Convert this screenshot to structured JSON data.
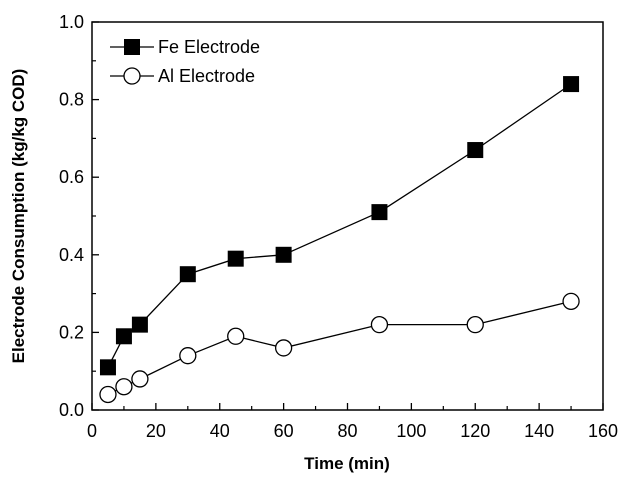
{
  "chart_data": {
    "type": "line",
    "xlabel": "Time (min)",
    "ylabel": "Electrode Consumption (kg/kg COD)",
    "xlim": [
      0,
      160
    ],
    "ylim": [
      0,
      1.0
    ],
    "x_ticks": [
      "0",
      "20",
      "40",
      "60",
      "80",
      "100",
      "120",
      "140",
      "160"
    ],
    "y_ticks": [
      "0.0",
      "0.2",
      "0.4",
      "0.6",
      "0.8",
      "1.0"
    ],
    "grid": false,
    "legend_position": "top-left",
    "series": [
      {
        "name": "Fe Electrode",
        "marker": "filled-square",
        "color": "#000000",
        "x": [
          5,
          10,
          15,
          30,
          45,
          60,
          90,
          120,
          150
        ],
        "y": [
          0.11,
          0.19,
          0.22,
          0.35,
          0.39,
          0.4,
          0.51,
          0.67,
          0.84
        ]
      },
      {
        "name": "Al Electrode",
        "marker": "open-circle",
        "color": "#000000",
        "x": [
          5,
          10,
          15,
          30,
          45,
          60,
          90,
          120,
          150
        ],
        "y": [
          0.04,
          0.06,
          0.08,
          0.14,
          0.19,
          0.16,
          0.22,
          0.22,
          0.28
        ]
      }
    ]
  }
}
